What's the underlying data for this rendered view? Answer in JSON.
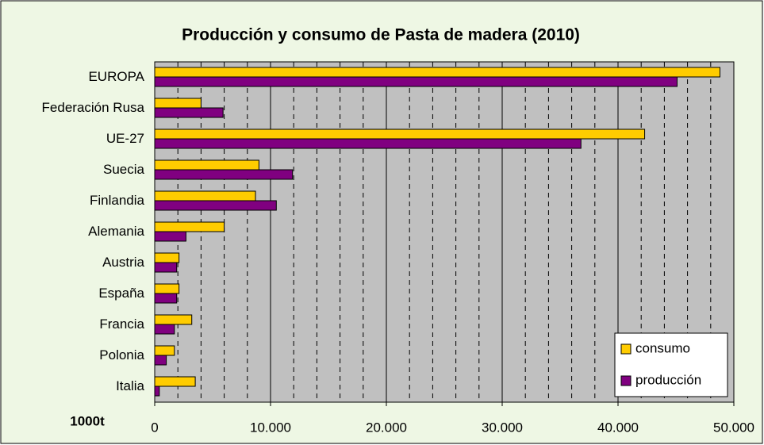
{
  "chart_data": {
    "type": "bar",
    "orientation": "horizontal",
    "title": "Producción y consumo de Pasta de madera (2010)",
    "unit_label": "1000t",
    "categories": [
      "EUROPA",
      "Federación Rusa",
      "UE-27",
      "Suecia",
      "Finlandia",
      "Alemania",
      "Austria",
      "España",
      "Francia",
      "Polonia",
      "Italia"
    ],
    "series": [
      {
        "name": "consumo",
        "color": "#ffcc00",
        "values": [
          48800,
          4000,
          42300,
          9000,
          8700,
          6000,
          2100,
          2100,
          3200,
          1700,
          3500
        ]
      },
      {
        "name": "producción",
        "color": "#800080",
        "values": [
          45100,
          5900,
          36800,
          11900,
          10500,
          2700,
          1900,
          1900,
          1700,
          1000,
          400
        ]
      }
    ],
    "xlim": [
      0,
      50000
    ],
    "xticks": [
      0,
      {
        "value": 10000,
        "label": "10.000"
      },
      {
        "value": 20000,
        "label": "20.000"
      },
      {
        "value": 30000,
        "label": "30.000"
      },
      {
        "value": 40000,
        "label": "40.000"
      },
      {
        "value": 50000,
        "label": "50.000"
      }
    ],
    "minor_xticks": [
      2000,
      4000,
      6000,
      8000,
      12000,
      14000,
      16000,
      18000,
      22000,
      24000,
      26000,
      28000,
      32000,
      34000,
      36000,
      38000,
      42000,
      44000,
      46000,
      48000
    ],
    "grid": true,
    "legend": "lower right"
  }
}
